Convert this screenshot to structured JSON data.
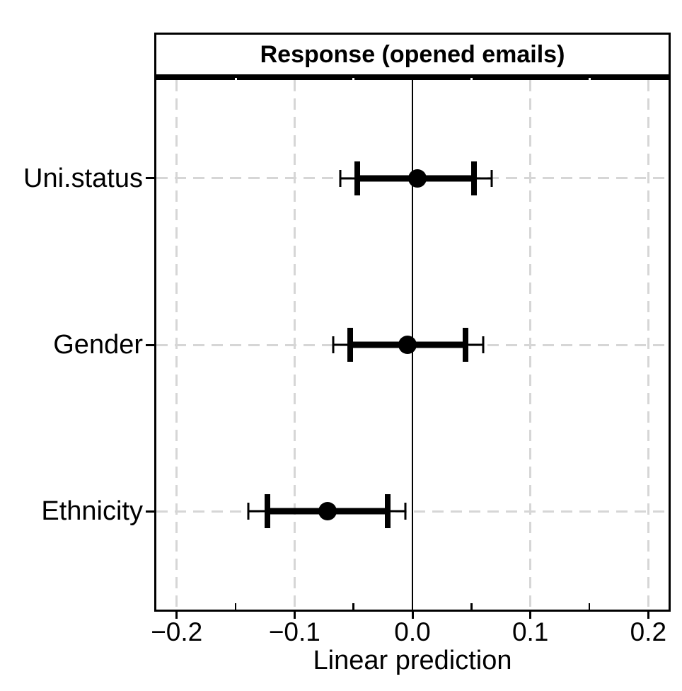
{
  "figure": {
    "panel_title": "Response (opened emails)",
    "x_axis_title": "Linear prediction"
  },
  "colors": {
    "foreground": "#000000",
    "background": "#ffffff",
    "gridline": "#d6d6d6"
  },
  "chart_data": {
    "type": "scatter",
    "subtype": "coefficient-plot-with-inner-and-outer-intervals",
    "title": "Response (opened emails)",
    "xlabel": "Linear prediction",
    "ylabel": "",
    "xlim": [
      -0.219,
      0.219
    ],
    "x_major_ticks": {
      "values": [
        -0.2,
        -0.1,
        0.0,
        0.1,
        0.2
      ],
      "labels": [
        "−0.2",
        "−0.1",
        "0.0",
        "0.1",
        "0.2"
      ]
    },
    "x_minor_ticks": [
      -0.15,
      -0.05,
      0.05,
      0.15
    ],
    "zero_line_x": 0.0,
    "grid": {
      "x_major_gridlines": "dashed",
      "y_category_gridlines": "dashed",
      "gridline_color": "#d6d6d6"
    },
    "legend": "none",
    "categories": [
      "Uni.status",
      "Gender",
      "Ethnicity"
    ],
    "rows": [
      {
        "label": "Uni.status",
        "estimate": 0.004,
        "inner_ci": [
          -0.047,
          0.052
        ],
        "outer_ci": [
          -0.061,
          0.067
        ]
      },
      {
        "label": "Gender",
        "estimate": -0.004,
        "inner_ci": [
          -0.053,
          0.045
        ],
        "outer_ci": [
          -0.067,
          0.06
        ]
      },
      {
        "label": "Ethnicity",
        "estimate": -0.072,
        "inner_ci": [
          -0.123,
          -0.021
        ],
        "outer_ci": [
          -0.139,
          -0.006
        ]
      }
    ]
  }
}
